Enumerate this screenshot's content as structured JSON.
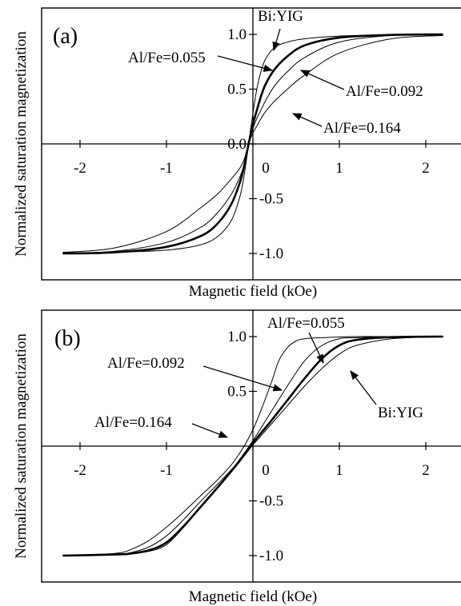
{
  "chart_data": [
    {
      "type": "line",
      "panel_label": "(a)",
      "xlabel": "Magnetic field (kOe)",
      "ylabel": "Normalized saturation magnetization",
      "xlim": [
        -2.2,
        2.2
      ],
      "ylim": [
        -1.25,
        1.25
      ],
      "xticks": [
        -2,
        -1,
        0,
        1,
        2
      ],
      "xtick_labels": [
        "-2",
        "-1",
        "0",
        "1",
        "2"
      ],
      "yticks": [
        -1.0,
        -0.5,
        0.0,
        0.5,
        1.0
      ],
      "ytick_labels": [
        "-1.0",
        "-0.5",
        "0.0",
        "0.5",
        "1.0"
      ],
      "grid": false,
      "series": [
        {
          "name": "Bi:YIG",
          "bold": false,
          "x": [
            -2.2,
            -1.6,
            -1.0,
            -0.6,
            -0.4,
            -0.25,
            -0.15,
            -0.1,
            -0.05,
            0.0,
            0.05,
            0.1,
            0.15,
            0.25,
            0.4,
            0.6,
            1.0,
            1.6,
            2.2
          ],
          "y": [
            -1.0,
            -0.99,
            -0.97,
            -0.92,
            -0.84,
            -0.7,
            -0.48,
            -0.28,
            0.0,
            0.28,
            0.52,
            0.68,
            0.78,
            0.88,
            0.93,
            0.96,
            0.985,
            0.995,
            1.0
          ]
        },
        {
          "name": "Al/Fe=0.055",
          "bold": true,
          "x": [
            -2.2,
            -1.6,
            -1.0,
            -0.6,
            -0.4,
            -0.25,
            -0.15,
            -0.1,
            -0.05,
            0.0,
            0.05,
            0.1,
            0.15,
            0.25,
            0.4,
            0.6,
            1.0,
            1.6,
            2.2
          ],
          "y": [
            -1.0,
            -0.99,
            -0.94,
            -0.84,
            -0.72,
            -0.55,
            -0.35,
            -0.2,
            0.0,
            0.18,
            0.32,
            0.45,
            0.55,
            0.68,
            0.8,
            0.9,
            0.97,
            0.995,
            1.0
          ]
        },
        {
          "name": "Al/Fe=0.092",
          "bold": false,
          "x": [
            -2.2,
            -1.6,
            -1.0,
            -0.6,
            -0.4,
            -0.25,
            -0.15,
            -0.1,
            -0.05,
            0.0,
            0.05,
            0.1,
            0.15,
            0.25,
            0.4,
            0.6,
            1.0,
            1.6,
            2.2
          ],
          "y": [
            -1.0,
            -0.98,
            -0.9,
            -0.76,
            -0.62,
            -0.46,
            -0.3,
            -0.18,
            0.0,
            0.14,
            0.24,
            0.32,
            0.4,
            0.53,
            0.66,
            0.79,
            0.93,
            0.99,
            1.0
          ]
        },
        {
          "name": "Al/Fe=0.164",
          "bold": false,
          "x": [
            -2.2,
            -1.6,
            -1.0,
            -0.6,
            -0.4,
            -0.25,
            -0.15,
            -0.1,
            -0.05,
            0.0,
            0.05,
            0.1,
            0.15,
            0.25,
            0.4,
            0.6,
            1.0,
            1.6,
            2.2
          ],
          "y": [
            -0.99,
            -0.95,
            -0.8,
            -0.58,
            -0.45,
            -0.32,
            -0.22,
            -0.14,
            0.0,
            0.1,
            0.17,
            0.24,
            0.3,
            0.39,
            0.5,
            0.63,
            0.83,
            0.96,
            0.99
          ]
        }
      ],
      "annotations": [
        "Bi:YIG",
        "Al/Fe=0.055",
        "Al/Fe=0.092",
        "Al/Fe=0.164"
      ]
    },
    {
      "type": "line",
      "panel_label": "(b)",
      "xlabel": "Magnetic field (kOe)",
      "ylabel": "Normalized saturation magnetization",
      "xlim": [
        -2.2,
        2.2
      ],
      "ylim": [
        -1.25,
        1.25
      ],
      "xticks": [
        -2,
        -1,
        0,
        1,
        2
      ],
      "xtick_labels": [
        "-2",
        "-1",
        "0",
        "1",
        "2"
      ],
      "yticks": [
        -1.0,
        -0.5,
        0.5,
        1.0
      ],
      "ytick_labels": [
        "-1.0",
        "-0.5",
        "0.5",
        "1.0"
      ],
      "grid": false,
      "series": [
        {
          "name": "Al/Fe=0.164",
          "bold": false,
          "x": [
            -2.2,
            -1.6,
            -1.4,
            -1.2,
            -1.0,
            -0.8,
            -0.6,
            -0.4,
            -0.2,
            0.0,
            0.2,
            0.3,
            0.4,
            0.5,
            0.6,
            0.8,
            1.2,
            1.6,
            2.2
          ],
          "y": [
            -1.0,
            -0.98,
            -0.94,
            -0.86,
            -0.74,
            -0.6,
            -0.45,
            -0.3,
            -0.12,
            0.15,
            0.55,
            0.78,
            0.9,
            0.96,
            0.98,
            0.99,
            1.0,
            1.0,
            1.0
          ]
        },
        {
          "name": "Al/Fe=0.092",
          "bold": false,
          "x": [
            -2.2,
            -1.6,
            -1.4,
            -1.2,
            -1.0,
            -0.8,
            -0.6,
            -0.4,
            -0.2,
            0.0,
            0.2,
            0.4,
            0.6,
            0.8,
            1.0,
            1.2,
            1.6,
            2.2
          ],
          "y": [
            -1.0,
            -0.99,
            -0.97,
            -0.92,
            -0.82,
            -0.67,
            -0.5,
            -0.34,
            -0.17,
            0.05,
            0.3,
            0.55,
            0.78,
            0.92,
            0.98,
            0.99,
            1.0,
            1.0
          ]
        },
        {
          "name": "Al/Fe=0.055",
          "bold": true,
          "x": [
            -2.2,
            -1.6,
            -1.4,
            -1.2,
            -1.0,
            -0.8,
            -0.6,
            -0.4,
            -0.2,
            0.0,
            0.2,
            0.4,
            0.6,
            0.8,
            1.0,
            1.2,
            1.6,
            2.2
          ],
          "y": [
            -1.0,
            -0.99,
            -0.98,
            -0.95,
            -0.88,
            -0.73,
            -0.55,
            -0.37,
            -0.18,
            0.03,
            0.22,
            0.42,
            0.62,
            0.8,
            0.92,
            0.97,
            0.995,
            1.0
          ]
        },
        {
          "name": "Bi:YIG",
          "bold": false,
          "x": [
            -2.2,
            -1.6,
            -1.4,
            -1.2,
            -1.0,
            -0.8,
            -0.6,
            -0.4,
            -0.2,
            0.0,
            0.2,
            0.4,
            0.6,
            0.8,
            1.0,
            1.2,
            1.6,
            2.2
          ],
          "y": [
            -1.0,
            -0.99,
            -0.98,
            -0.96,
            -0.9,
            -0.74,
            -0.55,
            -0.37,
            -0.19,
            0.01,
            0.19,
            0.37,
            0.55,
            0.71,
            0.84,
            0.92,
            0.98,
            1.0
          ]
        }
      ],
      "annotations": [
        "Al/Fe=0.055",
        "Al/Fe=0.092",
        "Bi:YIG",
        "Al/Fe=0.164"
      ]
    }
  ]
}
